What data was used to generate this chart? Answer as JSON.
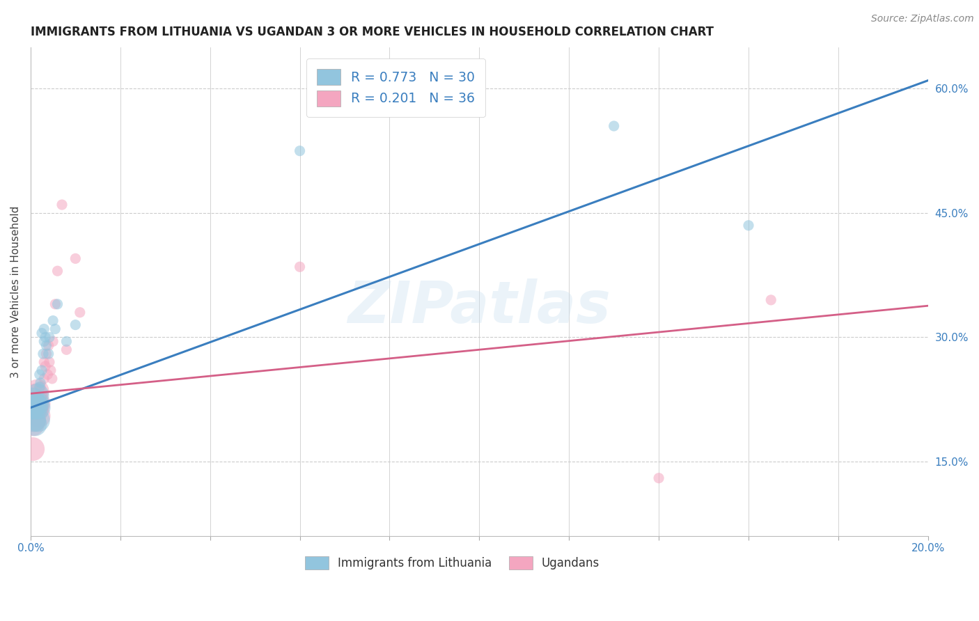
{
  "title": "IMMIGRANTS FROM LITHUANIA VS UGANDAN 3 OR MORE VEHICLES IN HOUSEHOLD CORRELATION CHART",
  "source": "Source: ZipAtlas.com",
  "ylabel": "3 or more Vehicles in Household",
  "xlim": [
    0.0,
    0.2
  ],
  "ylim": [
    0.06,
    0.65
  ],
  "x_ticks": [
    0.0,
    0.02,
    0.04,
    0.06,
    0.08,
    0.1,
    0.12,
    0.14,
    0.16,
    0.18,
    0.2
  ],
  "y_ticks_right": [
    0.15,
    0.3,
    0.45,
    0.6
  ],
  "y_tick_labels_right": [
    "15.0%",
    "30.0%",
    "45.0%",
    "60.0%"
  ],
  "blue_color": "#92c5de",
  "pink_color": "#f4a6c0",
  "blue_line_color": "#3a7ebf",
  "pink_line_color": "#d45f87",
  "legend_text_color": "#3a7ebf",
  "watermark_text": "ZIPatlas",
  "blue_scatter_x": [
    0.0005,
    0.0005,
    0.0008,
    0.001,
    0.001,
    0.0012,
    0.0015,
    0.0015,
    0.0017,
    0.0018,
    0.002,
    0.002,
    0.0022,
    0.0025,
    0.0025,
    0.0028,
    0.003,
    0.003,
    0.0033,
    0.0035,
    0.004,
    0.0042,
    0.005,
    0.0055,
    0.006,
    0.008,
    0.01,
    0.06,
    0.13,
    0.16
  ],
  "blue_scatter_y": [
    0.225,
    0.215,
    0.2,
    0.22,
    0.195,
    0.215,
    0.22,
    0.23,
    0.2,
    0.215,
    0.24,
    0.255,
    0.245,
    0.26,
    0.305,
    0.28,
    0.295,
    0.31,
    0.3,
    0.29,
    0.28,
    0.3,
    0.32,
    0.31,
    0.34,
    0.295,
    0.315,
    0.525,
    0.555,
    0.435
  ],
  "pink_scatter_x": [
    0.0005,
    0.0005,
    0.0008,
    0.001,
    0.001,
    0.0012,
    0.0012,
    0.0015,
    0.0015,
    0.0018,
    0.0018,
    0.002,
    0.0022,
    0.0022,
    0.0025,
    0.0025,
    0.0028,
    0.003,
    0.003,
    0.0033,
    0.0035,
    0.0038,
    0.004,
    0.0042,
    0.0045,
    0.0048,
    0.005,
    0.0055,
    0.006,
    0.007,
    0.008,
    0.01,
    0.011,
    0.06,
    0.14,
    0.165
  ],
  "pink_scatter_y": [
    0.165,
    0.195,
    0.2,
    0.215,
    0.22,
    0.21,
    0.23,
    0.215,
    0.235,
    0.205,
    0.22,
    0.225,
    0.22,
    0.24,
    0.215,
    0.23,
    0.22,
    0.25,
    0.27,
    0.265,
    0.28,
    0.255,
    0.29,
    0.27,
    0.26,
    0.25,
    0.295,
    0.34,
    0.38,
    0.46,
    0.285,
    0.395,
    0.33,
    0.385,
    0.13,
    0.345
  ],
  "blue_line_x": [
    0.0,
    0.2
  ],
  "blue_line_y": [
    0.215,
    0.61
  ],
  "pink_line_x": [
    0.0,
    0.2
  ],
  "pink_line_y": [
    0.232,
    0.338
  ],
  "background_color": "#ffffff",
  "grid_color": "#cccccc",
  "scatter_alpha": 0.55,
  "scatter_size_base": 120,
  "scatter_size_large": 600
}
